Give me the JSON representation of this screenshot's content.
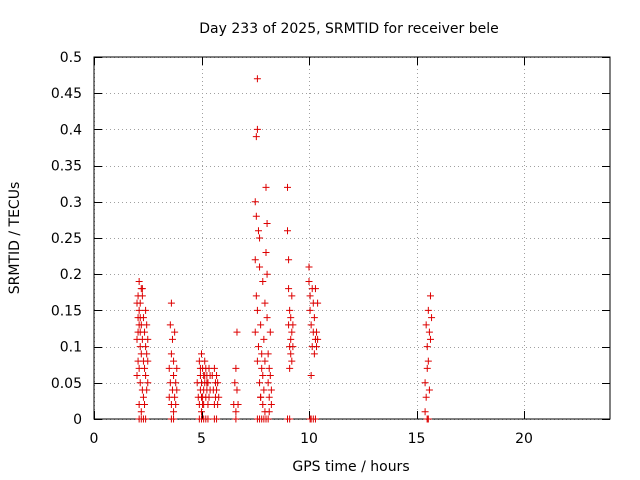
{
  "chart_data": {
    "type": "scatter",
    "title": "Day 233 of 2025, SRMTID for receiver bele",
    "xlabel": "GPS time / hours",
    "ylabel": "SRMTID / TECUs",
    "xlim": [
      0,
      24
    ],
    "ylim": [
      0,
      0.5
    ],
    "x_ticks": [
      0,
      5,
      10,
      15,
      20
    ],
    "x_tick_labels": [
      "0",
      "5",
      "10",
      "15",
      "20"
    ],
    "y_ticks": [
      0,
      0.05,
      0.1,
      0.15,
      0.2,
      0.25,
      0.3,
      0.35,
      0.4,
      0.45,
      0.5
    ],
    "y_tick_labels": [
      "0",
      "0.05",
      "0.1",
      "0.15",
      "0.2",
      "0.25",
      "0.3",
      "0.35",
      "0.4",
      "0.45",
      "0.5"
    ],
    "grid": true,
    "marker": "+",
    "marker_color": "#dd0000",
    "series": [
      {
        "name": "SRMTID",
        "x": [
          2.0,
          2.0,
          2.0,
          2.05,
          2.05,
          2.05,
          2.05,
          2.1,
          2.1,
          2.1,
          2.1,
          2.1,
          2.15,
          2.15,
          2.15,
          2.15,
          2.2,
          2.2,
          2.2,
          2.2,
          2.25,
          2.25,
          2.25,
          2.3,
          2.3,
          2.3,
          2.35,
          2.35,
          2.35,
          2.4,
          2.4,
          2.4,
          2.45,
          2.45,
          2.45,
          2.5,
          2.5,
          2.5,
          2.1,
          2.2,
          2.3,
          2.4,
          2.15,
          2.25,
          3.5,
          3.5,
          3.55,
          3.55,
          3.6,
          3.6,
          3.6,
          3.65,
          3.65,
          3.7,
          3.7,
          3.7,
          3.75,
          3.75,
          3.8,
          3.8,
          3.85,
          3.85,
          3.6,
          3.7,
          4.8,
          4.85,
          4.9,
          4.9,
          4.95,
          4.95,
          5.0,
          5.0,
          5.0,
          5.05,
          5.05,
          5.1,
          5.1,
          5.1,
          5.15,
          5.15,
          5.2,
          5.2,
          5.25,
          5.25,
          5.3,
          5.3,
          5.35,
          5.35,
          5.4,
          5.4,
          4.9,
          5.0,
          5.1,
          5.2,
          5.3,
          5.0,
          5.15,
          5.25,
          4.95,
          5.05,
          5.5,
          5.55,
          5.6,
          5.6,
          5.65,
          5.65,
          5.7,
          5.7,
          5.75,
          5.75,
          5.8,
          5.6,
          5.7,
          6.5,
          6.55,
          6.6,
          6.6,
          6.65,
          6.65,
          6.7,
          6.6,
          7.5,
          7.5,
          7.55,
          7.55,
          7.6,
          7.6,
          7.6,
          7.65,
          7.65,
          7.7,
          7.7,
          7.75,
          7.75,
          7.8,
          7.8,
          7.85,
          7.85,
          7.9,
          7.9,
          7.95,
          7.95,
          8.0,
          8.0,
          8.05,
          8.05,
          8.1,
          8.1,
          8.15,
          8.15,
          8.2,
          8.2,
          8.25,
          8.25,
          7.6,
          7.7,
          7.8,
          7.9,
          8.0,
          8.1,
          7.85,
          7.95,
          8.05,
          7.5,
          7.6,
          7.7,
          8.15,
          7.75,
          7.55,
          9.0,
          9.0,
          9.05,
          9.05,
          9.05,
          9.1,
          9.1,
          9.1,
          9.15,
          9.15,
          9.15,
          9.2,
          9.2,
          9.2,
          9.25,
          9.25,
          9.1,
          9.0,
          10.0,
          10.0,
          10.05,
          10.05,
          10.1,
          10.1,
          10.15,
          10.15,
          10.2,
          10.2,
          10.25,
          10.25,
          10.3,
          10.3,
          10.35,
          10.35,
          10.4,
          10.4,
          10.1,
          10.2,
          10.3,
          10.05,
          15.4,
          15.4,
          15.45,
          15.45,
          15.5,
          15.5,
          15.5,
          15.55,
          15.55,
          15.6,
          15.6,
          15.65,
          15.65,
          15.7,
          15.5,
          15.55
        ],
        "y": [
          0.06,
          0.11,
          0.16,
          0.14,
          0.17,
          0.08,
          0.12,
          0.13,
          0.19,
          0.15,
          0.07,
          0.02,
          0.12,
          0.16,
          0.05,
          0.1,
          0.18,
          0.13,
          0.09,
          0.01,
          0.17,
          0.11,
          0.04,
          0.14,
          0.08,
          0.03,
          0.12,
          0.07,
          0.02,
          0.15,
          0.1,
          0.06,
          0.13,
          0.09,
          0.04,
          0.11,
          0.08,
          0.05,
          0.0,
          0.0,
          0.0,
          0.0,
          0.14,
          0.18,
          0.07,
          0.03,
          0.13,
          0.05,
          0.09,
          0.02,
          0.16,
          0.04,
          0.11,
          0.06,
          0.01,
          0.08,
          0.03,
          0.12,
          0.05,
          0.02,
          0.04,
          0.07,
          0.0,
          0.0,
          0.05,
          0.03,
          0.08,
          0.02,
          0.06,
          0.04,
          0.09,
          0.05,
          0.01,
          0.07,
          0.03,
          0.06,
          0.04,
          0.02,
          0.08,
          0.05,
          0.07,
          0.03,
          0.06,
          0.04,
          0.05,
          0.02,
          0.07,
          0.03,
          0.06,
          0.04,
          0.0,
          0.0,
          0.0,
          0.0,
          0.0,
          0.03,
          0.06,
          0.05,
          0.07,
          0.02,
          0.06,
          0.04,
          0.07,
          0.02,
          0.05,
          0.03,
          0.06,
          0.04,
          0.05,
          0.02,
          0.03,
          0.0,
          0.0,
          0.02,
          0.05,
          0.07,
          0.01,
          0.04,
          0.12,
          0.02,
          0.0,
          0.22,
          0.3,
          0.17,
          0.39,
          0.4,
          0.47,
          0.15,
          0.1,
          0.26,
          0.05,
          0.21,
          0.03,
          0.13,
          0.07,
          0.09,
          0.02,
          0.06,
          0.04,
          0.11,
          0.01,
          0.08,
          0.32,
          0.23,
          0.27,
          0.14,
          0.05,
          0.09,
          0.03,
          0.07,
          0.12,
          0.06,
          0.02,
          0.04,
          0.0,
          0.0,
          0.0,
          0.0,
          0.0,
          0.0,
          0.19,
          0.16,
          0.2,
          0.12,
          0.08,
          0.25,
          0.01,
          0.03,
          0.28,
          0.32,
          0.26,
          0.22,
          0.18,
          0.13,
          0.1,
          0.15,
          0.07,
          0.11,
          0.14,
          0.09,
          0.17,
          0.12,
          0.08,
          0.1,
          0.13,
          0.0,
          0.0,
          0.21,
          0.19,
          0.17,
          0.15,
          0.13,
          0.06,
          0.18,
          0.1,
          0.16,
          0.12,
          0.14,
          0.09,
          0.11,
          0.18,
          0.1,
          0.12,
          0.16,
          0.11,
          0.0,
          0.0,
          0.0,
          0.0,
          0.05,
          0.01,
          0.13,
          0.03,
          0.1,
          0.07,
          0.0,
          0.15,
          0.08,
          0.12,
          0.04,
          0.17,
          0.11,
          0.14,
          0.0,
          0.0
        ]
      }
    ]
  }
}
